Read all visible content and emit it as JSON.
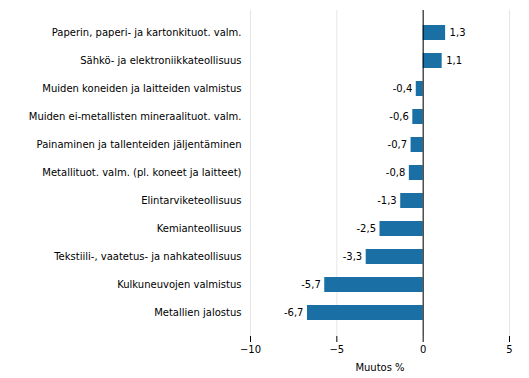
{
  "chart_data": {
    "type": "bar",
    "orientation": "horizontal",
    "categories": [
      "Metallien jalostus",
      "Kulkuneuvojen valmistus",
      "Tekstiili-, vaatetus- ja nahkateollisuus",
      "Kemianteollisuus",
      "Elintarviketeollisuus",
      "Metallituot. valm. (pl. koneet ja laitteet)",
      "Painaminen ja tallenteiden jäljentäminen",
      "Muiden ei-metallisten mineraalituot. valm.",
      "Muiden koneiden ja laitteiden valmistus",
      "Sähkö- ja elektroniikkateollisuus",
      "Paperin, paperi- ja kartonkituot. valm."
    ],
    "values": [
      -6.7,
      -5.7,
      -3.3,
      -2.5,
      -1.3,
      -0.8,
      -0.7,
      -0.6,
      -0.4,
      1.1,
      1.3
    ],
    "value_labels": [
      "-6,7",
      "-5,7",
      "-3,3",
      "-2,5",
      "-1,3",
      "-0,8",
      "-0,7",
      "-0,6",
      "-0,4",
      "1,1",
      "1,3"
    ],
    "color": "#1a6fa5",
    "xlabel": "Muutos %",
    "xlim": [
      -10,
      5
    ],
    "xticks": [
      -10,
      -5,
      0,
      5
    ],
    "grid": true,
    "data_labels": true
  }
}
